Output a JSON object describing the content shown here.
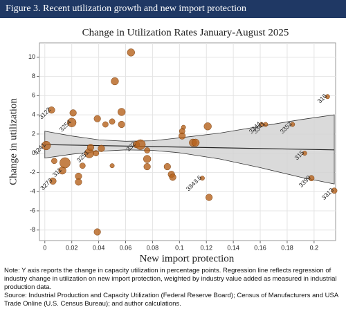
{
  "header": "Figure 3. Recent utilization growth and new import protection",
  "notes": [
    "Note: Y axis reports the change in capacity utilization in percentage points. Regression line reflects regression of industry change in utilization on new import protection, weighted by industry value added as measured in industrial production data.",
    "Source: Industrial Production and Capacity Utilization (Federal Reserve Board); Census of Manufacturers and USA Trade Online (U.S. Census Bureau); and author calculations."
  ],
  "chart_data": {
    "type": "scatter",
    "title": "Change in Utilization Rates January-August 2025",
    "x_label": "New import protection",
    "y_label": "Change in utilization",
    "xlim": [
      -0.004,
      0.216
    ],
    "ylim": [
      -9.1,
      11.5
    ],
    "xticks": [
      0,
      0.02,
      0.04,
      0.06,
      0.08,
      0.1,
      0.12,
      0.14,
      0.16,
      0.18,
      0.2
    ],
    "yticks": [
      -8,
      -6,
      -4,
      -2,
      0,
      2,
      4,
      6,
      8,
      10
    ],
    "grid": true,
    "color": "#b5621c",
    "points": {
      "x": [
        0.001,
        0.005,
        0.007,
        0.006,
        0.013,
        0.015,
        0.02,
        0.021,
        0.025,
        0.025,
        0.028,
        0.033,
        0.034,
        0.038,
        0.039,
        0.039,
        0.042,
        0.045,
        0.05,
        0.052,
        0.057,
        0.057,
        0.05,
        0.064,
        0.068,
        0.071,
        0.076,
        0.076,
        0.076,
        0.091,
        0.094,
        0.095,
        0.102,
        0.103,
        0.102,
        0.11,
        0.112,
        0.117,
        0.122,
        0.121,
        0.161,
        0.164,
        0.184,
        0.198,
        0.215,
        0.21,
        0.193
      ],
      "values": [
        0.8,
        4.5,
        -0.8,
        -2.9,
        -1.8,
        -1.0,
        3.2,
        4.2,
        -2.4,
        -3.0,
        -1.3,
        0.0,
        0.6,
        0.0,
        -8.2,
        3.6,
        0.5,
        3.0,
        3.3,
        7.5,
        3.0,
        4.3,
        -1.3,
        10.5,
        0.9,
        0.9,
        -0.6,
        -1.4,
        0.3,
        -1.4,
        -2.2,
        -2.5,
        1.8,
        2.7,
        2.3,
        1.1,
        1.1,
        -2.6,
        -4.6,
        2.8,
        3.0,
        3.0,
        3.0,
        -2.6,
        -3.9,
        5.9,
        0.0
      ],
      "sizes": [
        6,
        3,
        2,
        3,
        4,
        9,
        6,
        3,
        3,
        3,
        2,
        7,
        3,
        2,
        3,
        3,
        3,
        2,
        2,
        4,
        3,
        4,
        1,
        4,
        3,
        8,
        4,
        3,
        2,
        3,
        3,
        3,
        3,
        1,
        2,
        4,
        4,
        1,
        3,
        4,
        1,
        1,
        1,
        2,
        2,
        1,
        1
      ],
      "labels": [
        "3241",
        "3122",
        null,
        "3273",
        "311",
        null,
        "3254",
        null,
        null,
        null,
        null,
        "3251",
        null,
        null,
        null,
        null,
        null,
        null,
        null,
        null,
        null,
        null,
        null,
        null,
        "332",
        null,
        null,
        null,
        null,
        null,
        null,
        null,
        null,
        null,
        null,
        null,
        null,
        "3343.6",
        null,
        null,
        "3344",
        "3341",
        "3352",
        "3399",
        "3313",
        "316",
        "315"
      ]
    },
    "fit": {
      "x": [
        0,
        0.215
      ],
      "values": [
        0.9,
        0.35
      ]
    },
    "band": {
      "x": [
        0,
        0.02,
        0.04,
        0.06,
        0.08,
        0.1,
        0.13,
        0.16,
        0.19,
        0.215
      ],
      "upper": [
        2.3,
        1.8,
        1.4,
        1.25,
        1.3,
        1.6,
        2.1,
        2.8,
        3.5,
        4.0
      ],
      "lower": [
        -0.5,
        -0.1,
        0.2,
        0.35,
        0.3,
        0.05,
        -0.6,
        -1.5,
        -2.5,
        -3.2
      ]
    }
  }
}
